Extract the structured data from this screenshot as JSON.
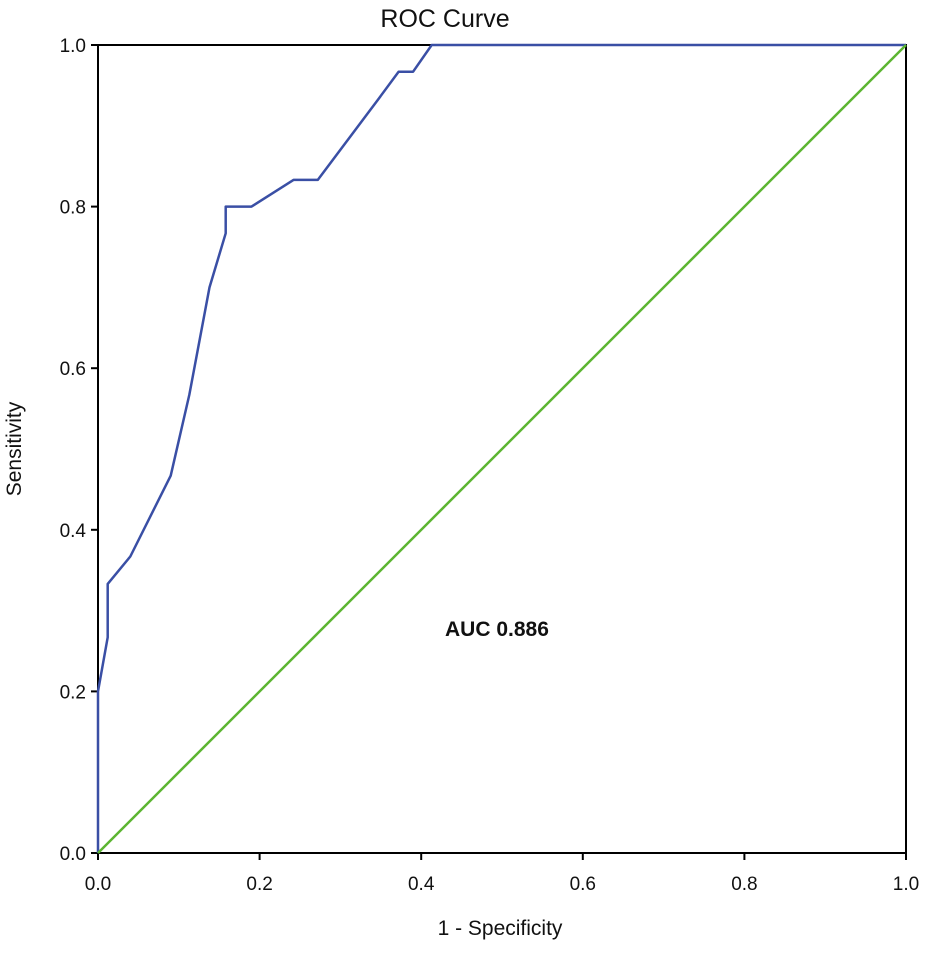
{
  "chart_data": {
    "type": "line",
    "title": "ROC Curve",
    "xlabel": "1 - Specificity",
    "ylabel": "Sensitivity",
    "xlim": [
      0.0,
      1.0
    ],
    "ylim": [
      0.0,
      1.0
    ],
    "x_ticks": [
      "0.0",
      "0.2",
      "0.4",
      "0.6",
      "0.8",
      "1.0"
    ],
    "y_ticks": [
      "0.0",
      "0.2",
      "0.4",
      "0.6",
      "0.8",
      "1.0"
    ],
    "grid": false,
    "annotation": "AUC 0.886",
    "series": [
      {
        "color": "#3a4fa5",
        "points": [
          [
            0.0,
            0.0
          ],
          [
            0.0,
            0.2
          ],
          [
            0.012,
            0.267
          ],
          [
            0.012,
            0.333
          ],
          [
            0.04,
            0.367
          ],
          [
            0.09,
            0.467
          ],
          [
            0.113,
            0.567
          ],
          [
            0.138,
            0.7
          ],
          [
            0.158,
            0.767
          ],
          [
            0.158,
            0.8
          ],
          [
            0.19,
            0.8
          ],
          [
            0.242,
            0.833
          ],
          [
            0.272,
            0.833
          ],
          [
            0.347,
            0.933
          ],
          [
            0.372,
            0.967
          ],
          [
            0.39,
            0.967
          ],
          [
            0.413,
            1.0
          ],
          [
            1.0,
            1.0
          ]
        ]
      },
      {
        "color": "#5cb531",
        "points": [
          [
            0.0,
            0.0
          ],
          [
            1.0,
            1.0
          ]
        ]
      }
    ]
  }
}
